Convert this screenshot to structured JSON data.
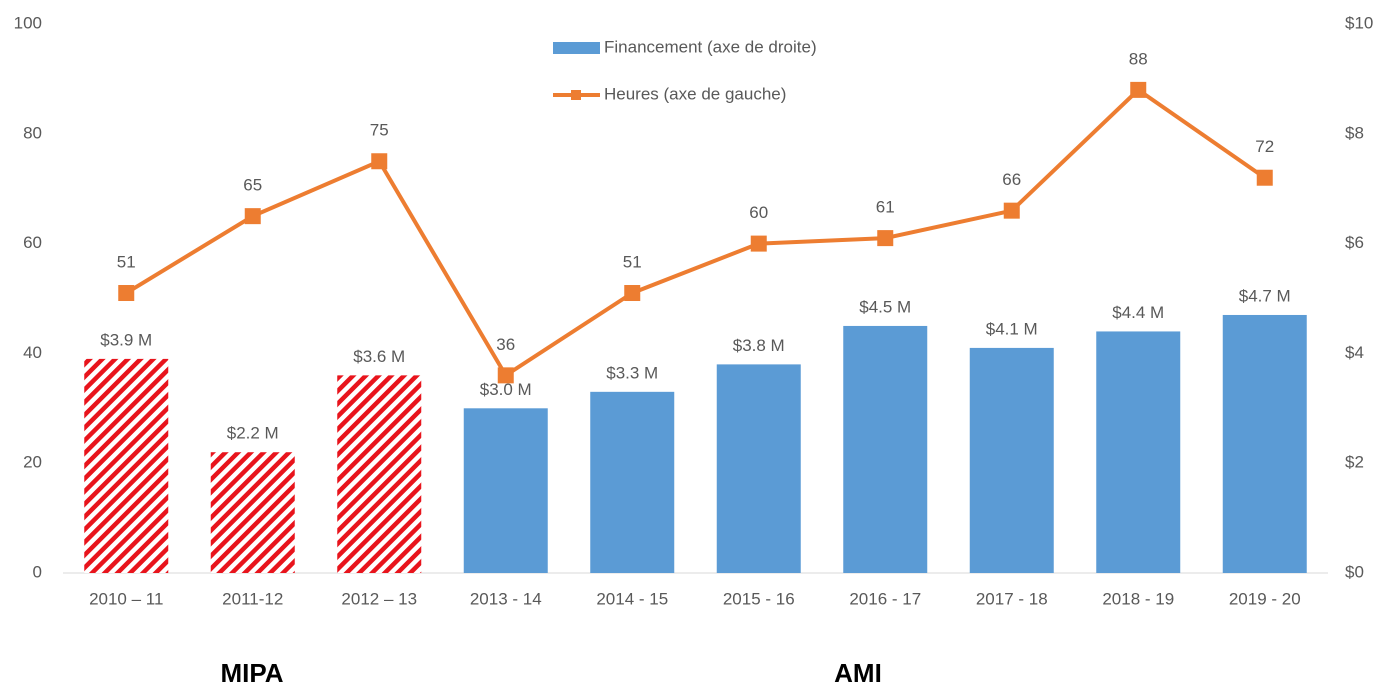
{
  "chart_data": {
    "type": "bar_line",
    "categories": [
      "2010 – 11",
      "2011-12",
      "2012 – 13",
      "2013 - 14",
      "2014 - 15",
      "2015 - 16",
      "2016 - 17",
      "2017 - 18",
      "2018 - 19",
      "2019 - 20"
    ],
    "series": [
      {
        "name": "Financement (axe de droite)",
        "type": "bar",
        "axis": "y2",
        "color": "#5b9bd5",
        "point_colors": [
          "#e8141c",
          "#e8141c",
          "#e8141c",
          "#5b9bd5",
          "#5b9bd5",
          "#5b9bd5",
          "#5b9bd5",
          "#5b9bd5",
          "#5b9bd5",
          "#5b9bd5"
        ],
        "hatched": [
          true,
          true,
          true,
          false,
          false,
          false,
          false,
          false,
          false,
          false
        ],
        "values": [
          3.9,
          2.2,
          3.6,
          3.0,
          3.3,
          3.8,
          4.5,
          4.1,
          4.4,
          4.7
        ],
        "value_labels": [
          "$3.9 M",
          "$2.2 M",
          "$3.6 M",
          "$3.0 M",
          "$3.3 M",
          "$3.8 M",
          "$4.5 M",
          "$4.1 M",
          "$4.4 M",
          "$4.7 M"
        ]
      },
      {
        "name": "Heures (axe de gauche)",
        "type": "line",
        "axis": "y",
        "color": "#ed7d31",
        "values": [
          51,
          65,
          75,
          36,
          51,
          60,
          61,
          66,
          88,
          72
        ]
      }
    ],
    "ylim": [
      0,
      100
    ],
    "yticks": [
      0,
      20,
      40,
      60,
      80,
      100
    ],
    "y2lim": [
      0,
      10
    ],
    "y2ticks": [
      {
        "value": 0,
        "label": "$0"
      },
      {
        "value": 2,
        "label": "$2"
      },
      {
        "value": 4,
        "label": "$4"
      },
      {
        "value": 6,
        "label": "$6"
      },
      {
        "value": 8,
        "label": "$8"
      },
      {
        "value": 10,
        "label": "$10"
      }
    ],
    "legend": "top",
    "group_labels": [
      "MIPA",
      "AMI"
    ]
  }
}
